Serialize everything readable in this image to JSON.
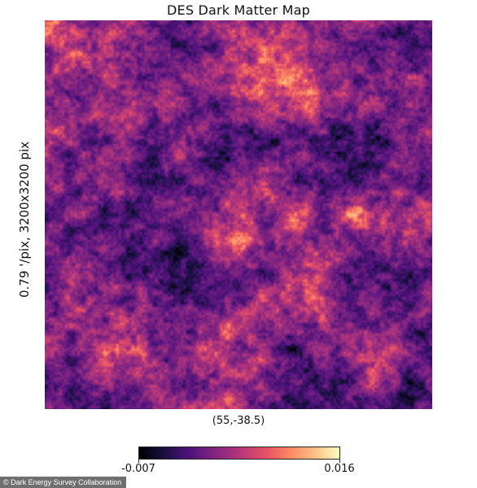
{
  "chart_data": {
    "type": "heatmap",
    "title": "DES Dark Matter Map",
    "ylabel": "0.79 '/pix,  3200x3200 pix",
    "center_label": "(55,-38.5)",
    "colormap": "magma",
    "colorbar": {
      "min": -0.007,
      "max": 0.016,
      "min_label": "-0.007",
      "max_label": "0.016"
    }
  },
  "credit": "© Dark Energy Survey Collaboration"
}
